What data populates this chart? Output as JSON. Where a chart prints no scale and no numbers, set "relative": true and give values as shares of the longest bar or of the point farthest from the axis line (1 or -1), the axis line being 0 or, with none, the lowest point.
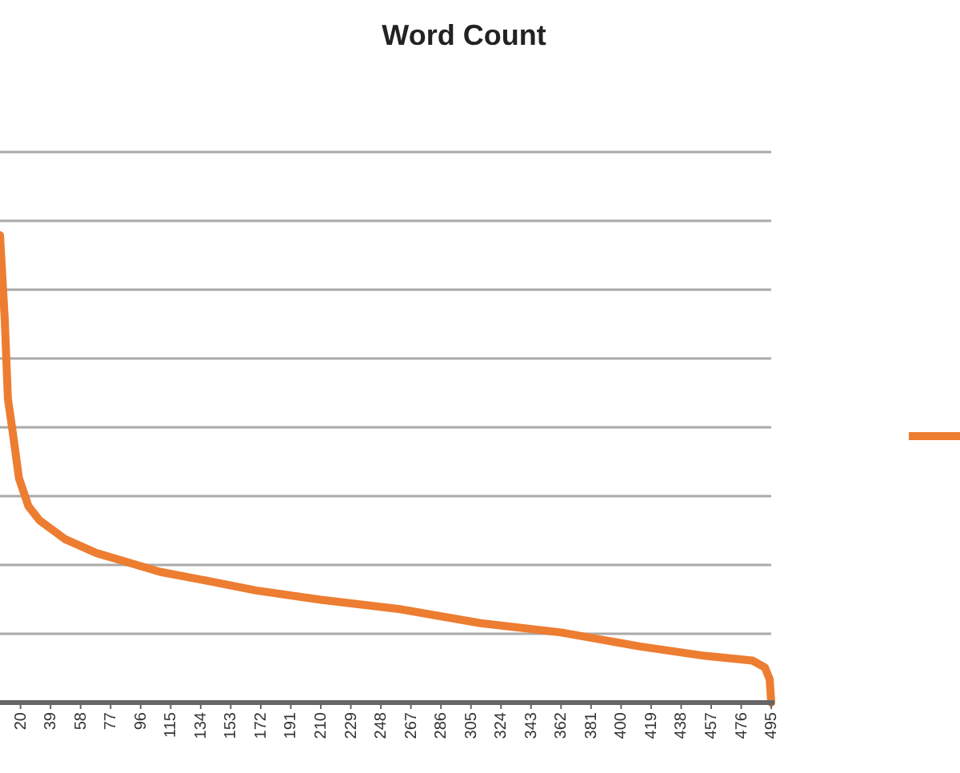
{
  "chart_data": {
    "type": "line",
    "title": "Word Count",
    "relative": true,
    "grid": "y",
    "marker": "none",
    "line_style": "solid",
    "x": [
      7,
      10,
      12,
      15,
      19,
      25,
      32,
      48,
      68,
      88,
      108,
      139,
      169,
      210,
      260,
      311,
      362,
      412,
      453,
      483,
      491,
      494,
      495
    ],
    "xlim": [
      7,
      497
    ],
    "xticks": [
      20,
      39,
      58,
      77,
      96,
      115,
      134,
      153,
      172,
      191,
      210,
      229,
      248,
      267,
      286,
      305,
      324,
      343,
      362,
      381,
      400,
      419,
      438,
      457,
      476,
      495
    ],
    "series": [
      {
        "color": "#ed7d31",
        "values": [
          1,
          0.82,
          0.65,
          0.58,
          0.48,
          0.42,
          0.39,
          0.35,
          0.32,
          0.3,
          0.28,
          0.26,
          0.24,
          0.22,
          0.2,
          0.17,
          0.15,
          0.12,
          0.1,
          0.09,
          0.075,
          0.05,
          0
        ]
      }
    ]
  }
}
